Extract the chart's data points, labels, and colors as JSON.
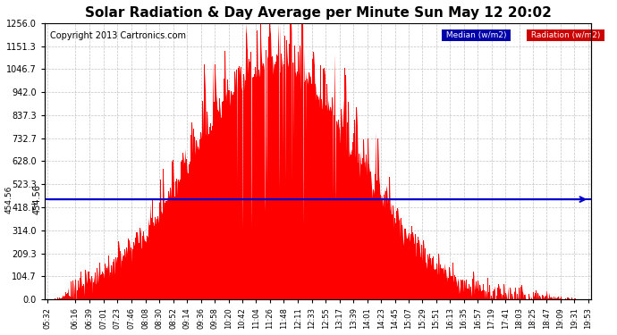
{
  "title": "Solar Radiation & Day Average per Minute Sun May 12 20:02",
  "copyright": "Copyright 2013 Cartronics.com",
  "median_value": 454.56,
  "y_max": 1256.0,
  "y_ticks": [
    0.0,
    104.7,
    209.3,
    314.0,
    418.7,
    523.3,
    628.0,
    732.7,
    837.3,
    942.0,
    1046.7,
    1151.3,
    1256.0
  ],
  "bar_color": "#FF0000",
  "median_color": "#0000CC",
  "background_color": "#FFFFFF",
  "plot_bg_color": "#FFFFFF",
  "grid_color": "#AAAAAA",
  "legend_median_bg": "#0000AA",
  "legend_radiation_bg": "#CC0000",
  "x_labels": [
    "05:32",
    "06:16",
    "06:39",
    "07:01",
    "07:23",
    "07:46",
    "08:08",
    "08:30",
    "08:52",
    "09:14",
    "09:36",
    "09:58",
    "10:20",
    "10:42",
    "11:04",
    "11:26",
    "11:48",
    "12:11",
    "12:33",
    "12:55",
    "13:17",
    "13:39",
    "14:01",
    "14:23",
    "14:45",
    "15:07",
    "15:29",
    "15:51",
    "16:13",
    "16:35",
    "16:57",
    "17:19",
    "17:41",
    "18:03",
    "18:25",
    "18:47",
    "19:09",
    "19:31",
    "19:53"
  ],
  "num_points": 855
}
